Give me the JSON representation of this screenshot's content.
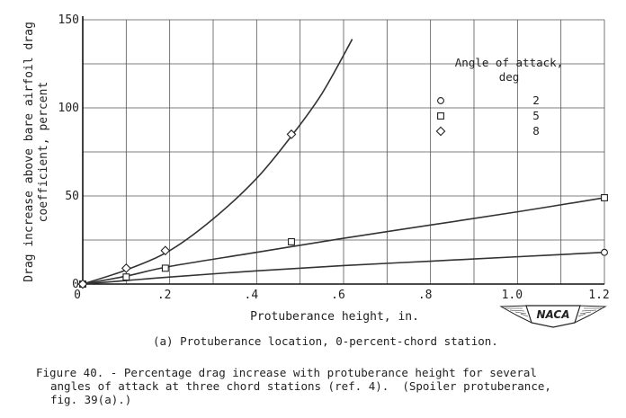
{
  "chart_data": {
    "type": "scatter",
    "xlabel": "Protuberance height, in.",
    "ylabel": [
      "Drag increase above bare airfoil drag",
      "coefficient, percent"
    ],
    "xlim": [
      0,
      1.2
    ],
    "ylim": [
      0,
      150
    ],
    "x_ticks": [
      {
        "v": 0,
        "label": "0"
      },
      {
        "v": 0.2,
        "label": ".2"
      },
      {
        "v": 0.4,
        "label": ".4"
      },
      {
        "v": 0.6,
        "label": ".6"
      },
      {
        "v": 0.8,
        "label": ".8"
      },
      {
        "v": 1.0,
        "label": "1.0"
      },
      {
        "v": 1.2,
        "label": "1.2"
      }
    ],
    "y_ticks": [
      {
        "v": 0,
        "label": "0"
      },
      {
        "v": 50,
        "label": "50"
      },
      {
        "v": 100,
        "label": "100"
      },
      {
        "v": 150,
        "label": "150"
      }
    ],
    "x_grid": [
      0,
      0.1,
      0.2,
      0.3,
      0.4,
      0.5,
      0.6,
      0.7,
      0.8,
      0.9,
      1.0,
      1.1,
      1.2
    ],
    "y_grid": [
      0,
      25,
      50,
      75,
      100,
      125,
      150
    ],
    "grid": true,
    "legend": {
      "title": [
        "Angle of attack,",
        "deg"
      ],
      "placement": "top-right",
      "entries": [
        {
          "marker": "circle",
          "label": "2"
        },
        {
          "marker": "square",
          "label": "5"
        },
        {
          "marker": "diamond",
          "label": "8"
        }
      ]
    },
    "series": [
      {
        "marker": "circle",
        "label": "2",
        "points": [
          [
            0,
            0
          ],
          [
            1.2,
            18
          ]
        ],
        "curve": [
          [
            0,
            0
          ],
          [
            0.1,
            2
          ],
          [
            0.2,
            4
          ],
          [
            0.4,
            7.5
          ],
          [
            0.6,
            10.5
          ],
          [
            0.8,
            13
          ],
          [
            1.0,
            15.5
          ],
          [
            1.2,
            18
          ]
        ]
      },
      {
        "marker": "square",
        "label": "5",
        "points": [
          [
            0,
            0
          ],
          [
            0.1,
            4
          ],
          [
            0.19,
            9
          ],
          [
            0.48,
            24
          ],
          [
            1.2,
            49
          ]
        ],
        "curve": [
          [
            0,
            0
          ],
          [
            0.1,
            4.5
          ],
          [
            0.2,
            10
          ],
          [
            0.4,
            18
          ],
          [
            0.6,
            26
          ],
          [
            0.8,
            33.5
          ],
          [
            1.0,
            41
          ],
          [
            1.2,
            49
          ]
        ]
      },
      {
        "marker": "diamond",
        "label": "8",
        "points": [
          [
            0,
            0
          ],
          [
            0.1,
            9
          ],
          [
            0.19,
            19
          ],
          [
            0.48,
            85
          ]
        ],
        "curve": [
          [
            0,
            0
          ],
          [
            0.1,
            8
          ],
          [
            0.2,
            19
          ],
          [
            0.3,
            37
          ],
          [
            0.4,
            60
          ],
          [
            0.48,
            84
          ],
          [
            0.55,
            108
          ],
          [
            0.62,
            139
          ]
        ]
      }
    ]
  },
  "insignia": "NACA",
  "subcaption": "(a) Protuberance location, 0-percent-chord station.",
  "caption": {
    "line1": "Figure 40. - Percentage drag increase with protuberance height for several",
    "line2": "angles of attack at three chord stations (ref. 4).  (Spoiler protuberance,",
    "line3": "fig. 39(a).)"
  }
}
